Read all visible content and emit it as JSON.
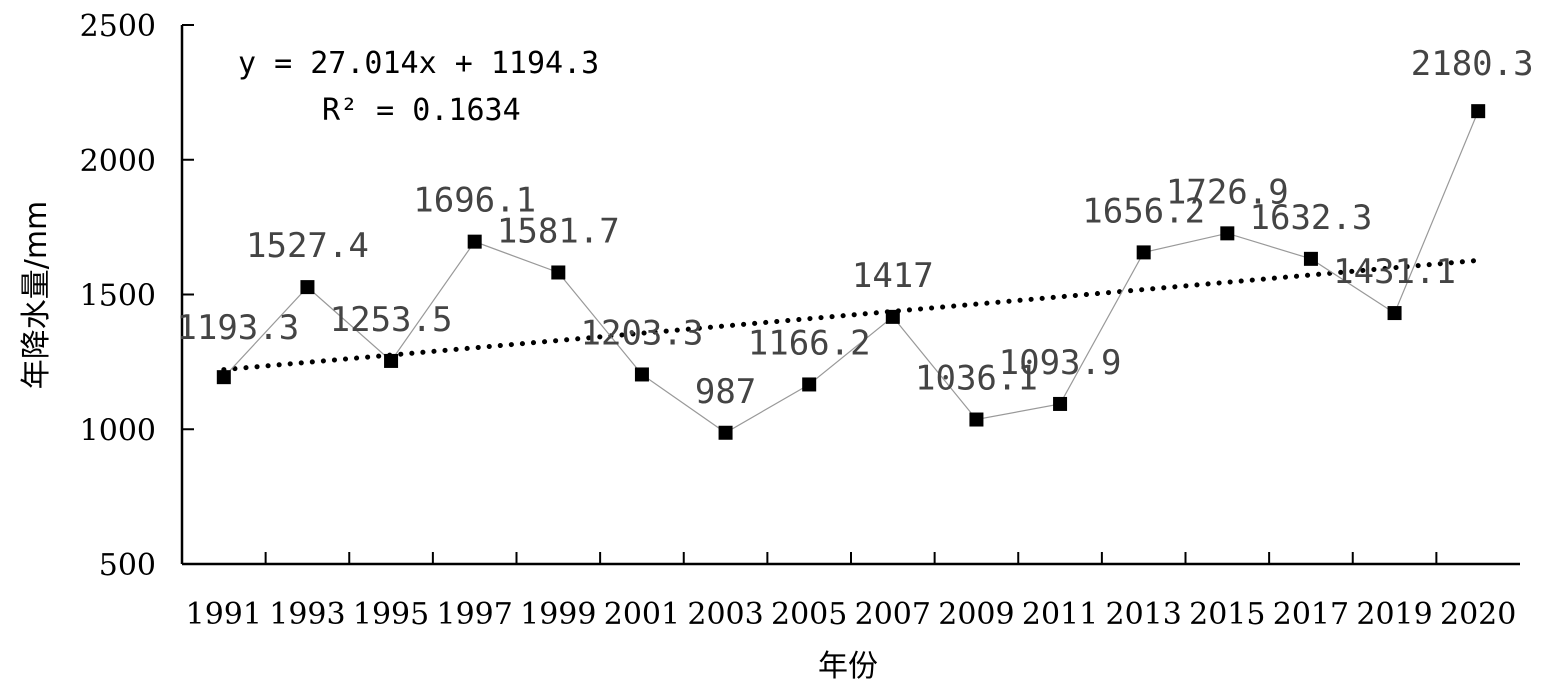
{
  "chart_data": {
    "type": "line",
    "xlabel": "年份",
    "ylabel": "年降水量/mm",
    "ylim": [
      500,
      2500
    ],
    "yticks": [
      "500",
      "1000",
      "1500",
      "2000",
      "2500"
    ],
    "x_tick_labels": [
      "1991",
      "1993",
      "1995",
      "1997",
      "1999",
      "2001",
      "2003",
      "2005",
      "2007",
      "2009",
      "2011",
      "2013",
      "2015",
      "2017",
      "2019",
      "2020"
    ],
    "series": [
      {
        "values": [
          1193.3,
          1527.4,
          1253.5,
          1696.1,
          1581.7,
          1203.3,
          987,
          1166.2,
          1417,
          1036.1,
          1093.9,
          1656.2,
          1726.9,
          1632.3,
          1431.1,
          2180.3
        ],
        "data_labels": [
          "1193.3",
          "1527.4",
          "1253.5",
          "1696.1",
          "1581.7",
          "1203.3",
          "987",
          "1166.2",
          "1417",
          "1036.1",
          "1093.9",
          "1656.2",
          "1726.9",
          "1632.3",
          "1431.1",
          "2180.3"
        ],
        "marker": "square",
        "color": "#000000",
        "line_color": "#999999"
      }
    ],
    "trendline": {
      "type": "linear",
      "slope": 27.014,
      "intercept": 1194.3,
      "r_squared": 0.1634,
      "style": "dotted",
      "equation_text": "y = 27.014x + 1194.3",
      "r2_text": "R² = 0.1634"
    },
    "grid": false,
    "legend": "none"
  }
}
